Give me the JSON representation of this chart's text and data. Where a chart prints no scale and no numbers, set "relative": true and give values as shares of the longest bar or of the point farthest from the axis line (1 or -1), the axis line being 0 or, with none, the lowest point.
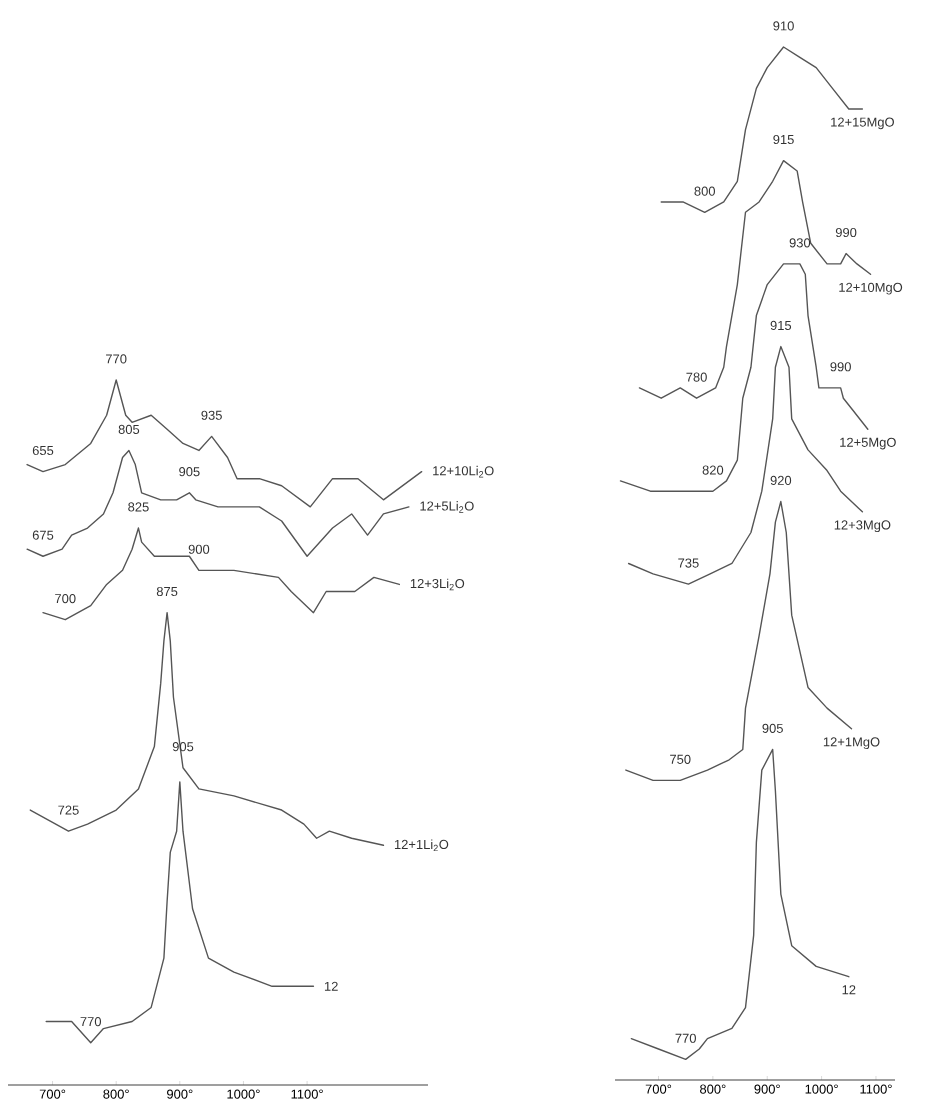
{
  "chart_data": [
    {
      "type": "line",
      "relative": true,
      "xlim": [
        630,
        1290
      ],
      "xticks": [
        {
          "value": 700,
          "label": "700°"
        },
        {
          "value": 800,
          "label": "800°"
        },
        {
          "value": 900,
          "label": "900°"
        },
        {
          "value": 1000,
          "label": "1000°"
        },
        {
          "value": 1100,
          "label": "1100°"
        }
      ],
      "series": [
        {
          "name": "12+10Li$_{2}$O",
          "color": "#555555",
          "x": [
            660,
            685,
            720,
            760,
            785,
            800,
            815,
            825,
            855,
            880,
            905,
            930,
            950,
            975,
            990,
            1025,
            1060,
            1105,
            1140,
            1180,
            1220,
            1280
          ],
          "values": [
            0.88,
            0.87,
            0.88,
            0.91,
            0.95,
            1.0,
            0.95,
            0.94,
            0.95,
            0.93,
            0.91,
            0.9,
            0.92,
            0.89,
            0.86,
            0.86,
            0.85,
            0.82,
            0.86,
            0.86,
            0.83,
            0.87
          ]
        },
        {
          "name": "12+5Li$_{2}$O",
          "color": "#555555",
          "x": [
            660,
            685,
            715,
            730,
            755,
            780,
            795,
            810,
            820,
            830,
            840,
            870,
            895,
            915,
            925,
            960,
            1025,
            1060,
            1100,
            1140,
            1170,
            1195,
            1220,
            1260
          ],
          "values": [
            0.76,
            0.75,
            0.76,
            0.78,
            0.79,
            0.81,
            0.84,
            0.89,
            0.9,
            0.88,
            0.84,
            0.83,
            0.83,
            0.84,
            0.83,
            0.82,
            0.82,
            0.8,
            0.75,
            0.79,
            0.81,
            0.78,
            0.81,
            0.82
          ]
        },
        {
          "name": "12+3Li$_{2}$O",
          "color": "#555555",
          "x": [
            685,
            720,
            760,
            785,
            810,
            825,
            835,
            840,
            860,
            890,
            915,
            930,
            985,
            1055,
            1075,
            1110,
            1130,
            1175,
            1205,
            1245
          ],
          "values": [
            0.67,
            0.66,
            0.68,
            0.71,
            0.73,
            0.76,
            0.79,
            0.77,
            0.75,
            0.75,
            0.75,
            0.73,
            0.73,
            0.72,
            0.7,
            0.67,
            0.7,
            0.7,
            0.72,
            0.71
          ]
        },
        {
          "name": "12+1Li$_{2}$O",
          "color": "#555555",
          "x": [
            665,
            725,
            755,
            800,
            835,
            860,
            870,
            875,
            880,
            885,
            890,
            905,
            930,
            985,
            1060,
            1095,
            1115,
            1135,
            1170,
            1220
          ],
          "values": [
            0.39,
            0.36,
            0.37,
            0.39,
            0.42,
            0.48,
            0.57,
            0.63,
            0.67,
            0.63,
            0.55,
            0.45,
            0.42,
            0.41,
            0.39,
            0.37,
            0.35,
            0.36,
            0.35,
            0.34
          ]
        },
        {
          "name": "12",
          "color": "#555555",
          "x": [
            690,
            730,
            760,
            780,
            825,
            855,
            875,
            880,
            885,
            895,
            900,
            905,
            920,
            945,
            985,
            1045,
            1110
          ],
          "values": [
            0.09,
            0.09,
            0.06,
            0.08,
            0.09,
            0.11,
            0.18,
            0.26,
            0.33,
            0.36,
            0.43,
            0.36,
            0.25,
            0.18,
            0.16,
            0.14,
            0.14
          ]
        }
      ],
      "annotations": [
        {
          "text": "655",
          "x": 685,
          "y": 0.87
        },
        {
          "text": "770",
          "x": 800,
          "y": 1.0
        },
        {
          "text": "935",
          "x": 950,
          "y": 0.92
        },
        {
          "text": "675",
          "x": 685,
          "y": 0.75
        },
        {
          "text": "805",
          "x": 820,
          "y": 0.9
        },
        {
          "text": "905",
          "x": 915,
          "y": 0.84
        },
        {
          "text": "700",
          "x": 720,
          "y": 0.66
        },
        {
          "text": "825",
          "x": 835,
          "y": 0.79
        },
        {
          "text": "900",
          "x": 930,
          "y": 0.73
        },
        {
          "text": "725",
          "x": 725,
          "y": 0.36
        },
        {
          "text": "875",
          "x": 880,
          "y": 0.67
        },
        {
          "text": "905",
          "x": 905,
          "y": 0.45
        },
        {
          "text": "770",
          "x": 760,
          "y": 0.06
        }
      ]
    },
    {
      "type": "line",
      "relative": true,
      "xlim": [
        620,
        1135
      ],
      "xticks": [
        {
          "value": 700,
          "label": "700°"
        },
        {
          "value": 800,
          "label": "800°"
        },
        {
          "value": 900,
          "label": "900°"
        },
        {
          "value": 1000,
          "label": "1000°"
        },
        {
          "value": 1100,
          "label": "1100°"
        }
      ],
      "series": [
        {
          "name": "12+15MgO",
          "color": "#555555",
          "x": [
            705,
            745,
            785,
            820,
            845,
            860,
            880,
            900,
            930,
            960,
            990,
            1020,
            1050,
            1075
          ],
          "values": [
            0.85,
            0.85,
            0.84,
            0.85,
            0.87,
            0.92,
            0.96,
            0.98,
            1.0,
            0.99,
            0.98,
            0.96,
            0.94,
            0.94
          ]
        },
        {
          "name": "12+10MgO",
          "color": "#555555",
          "x": [
            665,
            705,
            740,
            770,
            805,
            820,
            825,
            845,
            860,
            885,
            910,
            930,
            955,
            965,
            980,
            1010,
            1035,
            1045,
            1065,
            1090
          ],
          "values": [
            0.67,
            0.66,
            0.67,
            0.66,
            0.67,
            0.69,
            0.71,
            0.77,
            0.84,
            0.85,
            0.87,
            0.89,
            0.88,
            0.85,
            0.81,
            0.79,
            0.79,
            0.8,
            0.79,
            0.78
          ]
        },
        {
          "name": "12+5MgO",
          "color": "#555555",
          "x": [
            630,
            685,
            745,
            765,
            800,
            825,
            845,
            855,
            870,
            880,
            900,
            930,
            960,
            970,
            975,
            990,
            995,
            1020,
            1035,
            1040,
            1055,
            1085
          ],
          "values": [
            0.58,
            0.57,
            0.57,
            0.57,
            0.57,
            0.58,
            0.6,
            0.66,
            0.69,
            0.74,
            0.77,
            0.79,
            0.79,
            0.78,
            0.74,
            0.69,
            0.67,
            0.67,
            0.67,
            0.66,
            0.65,
            0.63
          ]
        },
        {
          "name": "12+3MgO",
          "color": "#555555",
          "x": [
            645,
            690,
            755,
            795,
            835,
            870,
            890,
            910,
            915,
            925,
            940,
            945,
            975,
            1010,
            1035,
            1075
          ],
          "values": [
            0.5,
            0.49,
            0.48,
            0.49,
            0.5,
            0.53,
            0.57,
            0.64,
            0.69,
            0.71,
            0.69,
            0.64,
            0.61,
            0.59,
            0.57,
            0.55
          ]
        },
        {
          "name": "12+1MgO",
          "color": "#555555",
          "x": [
            640,
            690,
            740,
            790,
            830,
            855,
            860,
            885,
            905,
            915,
            925,
            935,
            945,
            975,
            1010,
            1055
          ],
          "values": [
            0.3,
            0.29,
            0.29,
            0.3,
            0.31,
            0.32,
            0.36,
            0.43,
            0.49,
            0.54,
            0.56,
            0.53,
            0.45,
            0.38,
            0.36,
            0.34
          ]
        },
        {
          "name": "12",
          "color": "#555555",
          "x": [
            650,
            700,
            750,
            775,
            790,
            835,
            860,
            875,
            880,
            890,
            910,
            915,
            925,
            945,
            990,
            1050
          ],
          "values": [
            0.04,
            0.03,
            0.02,
            0.03,
            0.04,
            0.05,
            0.07,
            0.14,
            0.23,
            0.3,
            0.32,
            0.28,
            0.18,
            0.13,
            0.11,
            0.1
          ]
        }
      ],
      "annotations": [
        {
          "text": "910",
          "x": 930,
          "y": 1.0
        },
        {
          "text": "800",
          "x": 785,
          "y": 0.84
        },
        {
          "text": "915",
          "x": 930,
          "y": 0.89
        },
        {
          "text": "990",
          "x": 1045,
          "y": 0.8
        },
        {
          "text": "780",
          "x": 770,
          "y": 0.66
        },
        {
          "text": "930",
          "x": 960,
          "y": 0.79
        },
        {
          "text": "990",
          "x": 1035,
          "y": 0.67
        },
        {
          "text": "820",
          "x": 800,
          "y": 0.57
        },
        {
          "text": "915",
          "x": 925,
          "y": 0.71
        },
        {
          "text": "735",
          "x": 755,
          "y": 0.48
        },
        {
          "text": "920",
          "x": 925,
          "y": 0.56
        },
        {
          "text": "750",
          "x": 740,
          "y": 0.29
        },
        {
          "text": "905",
          "x": 910,
          "y": 0.32
        },
        {
          "text": "770",
          "x": 750,
          "y": 0.02
        }
      ]
    }
  ]
}
